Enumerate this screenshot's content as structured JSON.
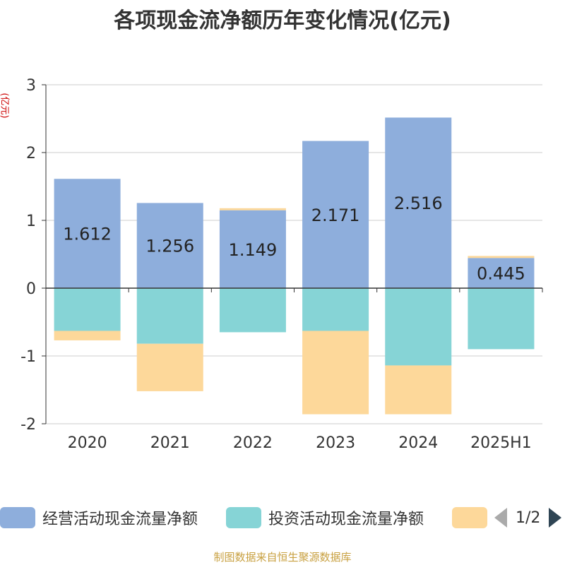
{
  "chart_data": {
    "type": "bar",
    "stacked": true,
    "title": "各项现金流净额历年变化情况(亿元)",
    "unit_label": "(亿元)",
    "categories": [
      "2020",
      "2021",
      "2022",
      "2023",
      "2024",
      "2025H1"
    ],
    "series": [
      {
        "name": "经营活动现金流量净额",
        "color": "#8eaedc",
        "values": [
          1.612,
          1.256,
          1.149,
          2.171,
          2.516,
          0.445
        ],
        "labels": [
          "1.612",
          "1.256",
          "1.149",
          "2.171",
          "2.516",
          "0.445"
        ]
      },
      {
        "name": "投资活动现金流量净额",
        "color": "#86d4d6",
        "values": [
          -0.63,
          -0.82,
          -0.65,
          -0.63,
          -1.14,
          -0.9
        ]
      },
      {
        "name": "",
        "color": "#fdd89a",
        "values": [
          -0.14,
          -0.7,
          0.03,
          -1.23,
          -0.72,
          0.03
        ]
      }
    ],
    "ylim": [
      -2,
      3
    ],
    "yticks": [
      -2,
      -1,
      0,
      1,
      2,
      3
    ],
    "ytick_labels": [
      "-2",
      "-1",
      "0",
      "1",
      "2",
      "3"
    ],
    "grid": true,
    "legend_position": "bottom"
  },
  "legend": {
    "items": [
      "经营活动现金流量净额",
      "投资活动现金流量净额"
    ],
    "pager": "1/2"
  },
  "source": "制图数据来自恒生聚源数据库"
}
